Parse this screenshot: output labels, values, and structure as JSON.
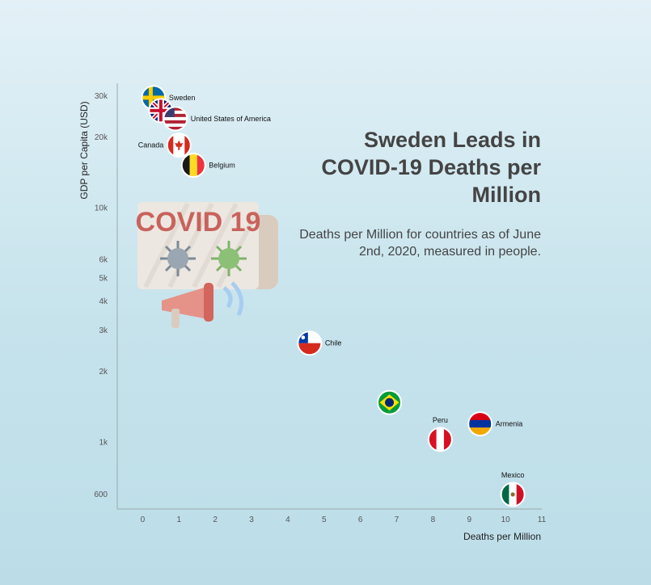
{
  "title": "Sweden Leads in COVID-19 Deaths per Million",
  "subtitle": "Deaths per Million for countries as of June 2nd, 2020, measured in people.",
  "illustration": {
    "banner_text": "COVID 19",
    "icon": "covid-megaphone-icon"
  },
  "chart_data": {
    "type": "scatter",
    "title": "Sweden Leads in COVID-19 Deaths per Million",
    "subtitle": "Deaths per Million for countries as of June 2nd, 2020, measured in people.",
    "xlabel": "Deaths per Million",
    "ylabel": "GDP per Capita (USD)",
    "xlim": [
      -0.7,
      11
    ],
    "ylim": [
      520,
      34000
    ],
    "yscale": "log",
    "x_ticks": [
      0,
      1,
      2,
      3,
      4,
      5,
      6,
      7,
      8,
      9,
      10,
      11
    ],
    "y_ticks": [
      {
        "value": 600,
        "label": "600"
      },
      {
        "value": 1000,
        "label": "1k"
      },
      {
        "value": 2000,
        "label": "2k"
      },
      {
        "value": 3000,
        "label": "3k"
      },
      {
        "value": 4000,
        "label": "4k"
      },
      {
        "value": 5000,
        "label": "5k"
      },
      {
        "value": 6000,
        "label": "6k"
      },
      {
        "value": 10000,
        "label": "10k"
      },
      {
        "value": 20000,
        "label": "20k"
      },
      {
        "value": 30000,
        "label": "30k"
      }
    ],
    "grid": false,
    "points": [
      {
        "label": "Sweden",
        "x": 0.3,
        "y": 29500,
        "flag": "sweden",
        "label_pos": "right"
      },
      {
        "label": "",
        "x": 0.5,
        "y": 26000,
        "flag": "uk",
        "label_pos": "none"
      },
      {
        "label": "United States of America",
        "x": 0.9,
        "y": 24000,
        "flag": "usa",
        "label_pos": "right"
      },
      {
        "label": "Canada",
        "x": 1.0,
        "y": 18500,
        "flag": "canada",
        "label_pos": "left"
      },
      {
        "label": "Belgium",
        "x": 1.4,
        "y": 15200,
        "flag": "belgium",
        "label_pos": "right"
      },
      {
        "label": "Chile",
        "x": 4.6,
        "y": 2650,
        "flag": "chile",
        "label_pos": "right"
      },
      {
        "label": "",
        "x": 6.8,
        "y": 1480,
        "flag": "brazil",
        "label_pos": "none"
      },
      {
        "label": "Peru",
        "x": 8.2,
        "y": 1030,
        "flag": "peru",
        "label_pos": "top"
      },
      {
        "label": "Armenia",
        "x": 9.3,
        "y": 1200,
        "flag": "armenia",
        "label_pos": "right"
      },
      {
        "label": "Mexico",
        "x": 10.2,
        "y": 600,
        "flag": "mexico",
        "label_pos": "top"
      }
    ]
  }
}
